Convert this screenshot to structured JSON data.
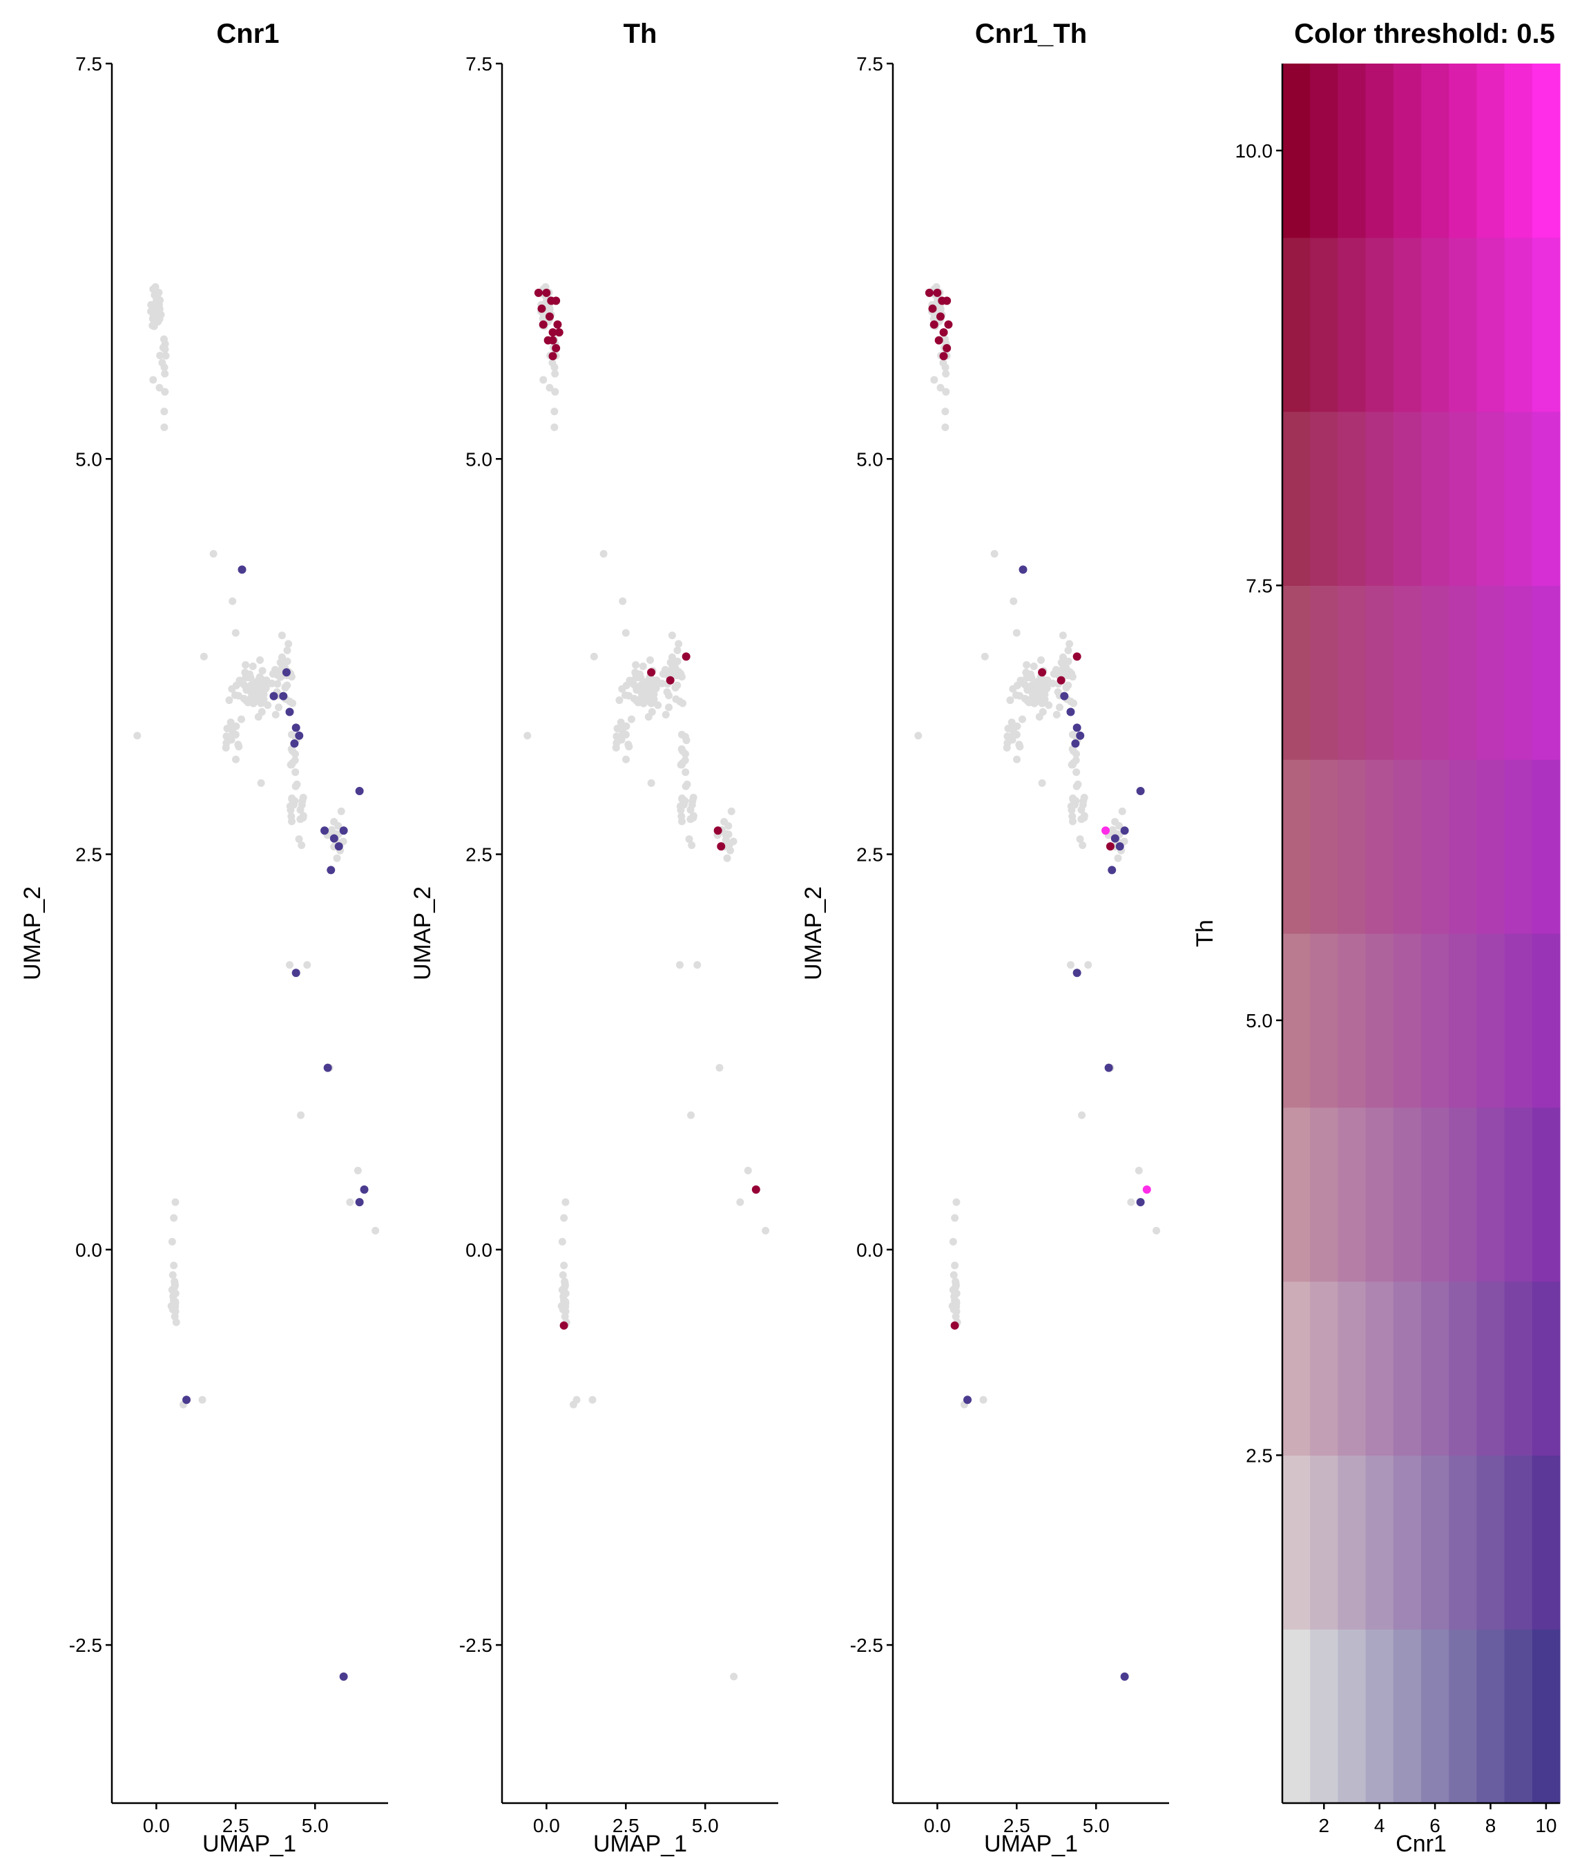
{
  "figure": {
    "background": "#ffffff",
    "point_colors": {
      "low": "#dddddd",
      "cnr1_high": "#4b3b8f",
      "th_high": "#960035",
      "both_high": "#ff2ce8"
    }
  },
  "chart_data": [
    {
      "type": "scatter",
      "title": "Cnr1",
      "xlabel": "UMAP_1",
      "ylabel": "UMAP_2",
      "xlim": [
        -1.4,
        7.3
      ],
      "ylim": [
        -3.5,
        7.5
      ],
      "x_ticks": [
        0.0,
        2.5,
        5.0
      ],
      "x_tick_labels": [
        "0.0",
        "2.5",
        "5.0"
      ],
      "y_ticks": [
        -2.5,
        0.0,
        2.5,
        5.0,
        7.5
      ],
      "y_tick_labels": [
        "-2.5",
        "0.0",
        "2.5",
        "5.0",
        "7.5"
      ],
      "grid": false,
      "legend": "none",
      "color_by": "Cnr1 expression (low = grey, high = purple)",
      "highlighted_points": [
        [
          2.7,
          4.3
        ],
        [
          3.7,
          3.5
        ],
        [
          4.0,
          3.5
        ],
        [
          4.1,
          3.65
        ],
        [
          4.2,
          3.4
        ],
        [
          4.4,
          3.3
        ],
        [
          4.5,
          3.25
        ],
        [
          4.35,
          3.2
        ],
        [
          5.3,
          2.65
        ],
        [
          5.6,
          2.6
        ],
        [
          5.75,
          2.55
        ],
        [
          5.9,
          2.65
        ],
        [
          6.4,
          2.9
        ],
        [
          5.5,
          2.4
        ],
        [
          4.4,
          1.75
        ],
        [
          5.4,
          1.15
        ],
        [
          6.4,
          0.3
        ],
        [
          6.55,
          0.38
        ],
        [
          0.95,
          -0.95
        ],
        [
          5.9,
          -2.7
        ]
      ]
    },
    {
      "type": "scatter",
      "title": "Th",
      "xlabel": "UMAP_1",
      "ylabel": "UMAP_2",
      "xlim": [
        -1.4,
        7.3
      ],
      "ylim": [
        -3.5,
        7.5
      ],
      "x_ticks": [
        0.0,
        2.5,
        5.0
      ],
      "x_tick_labels": [
        "0.0",
        "2.5",
        "5.0"
      ],
      "y_ticks": [
        -2.5,
        0.0,
        2.5,
        5.0,
        7.5
      ],
      "y_tick_labels": [
        "-2.5",
        "0.0",
        "2.5",
        "5.0",
        "7.5"
      ],
      "grid": false,
      "legend": "none",
      "color_by": "Th expression (low = grey, high = dark red)",
      "highlighted_points": [
        [
          -0.25,
          6.05
        ],
        [
          0.0,
          6.05
        ],
        [
          0.15,
          6.0
        ],
        [
          -0.15,
          5.95
        ],
        [
          0.3,
          6.0
        ],
        [
          -0.1,
          5.85
        ],
        [
          0.1,
          5.9
        ],
        [
          0.35,
          5.85
        ],
        [
          0.2,
          5.8
        ],
        [
          0.4,
          5.8
        ],
        [
          0.05,
          5.75
        ],
        [
          0.3,
          5.7
        ],
        [
          0.2,
          5.75
        ],
        [
          0.2,
          5.65
        ],
        [
          3.3,
          3.65
        ],
        [
          3.9,
          3.6
        ],
        [
          4.4,
          3.75
        ],
        [
          5.4,
          2.65
        ],
        [
          5.5,
          2.55
        ],
        [
          6.6,
          0.38
        ],
        [
          0.55,
          -0.48
        ]
      ]
    },
    {
      "type": "scatter",
      "title": "Cnr1_Th",
      "xlabel": "UMAP_1",
      "ylabel": "UMAP_2",
      "xlim": [
        -1.4,
        7.3
      ],
      "ylim": [
        -3.5,
        7.5
      ],
      "x_ticks": [
        0.0,
        2.5,
        5.0
      ],
      "x_tick_labels": [
        "0.0",
        "2.5",
        "5.0"
      ],
      "y_ticks": [
        -2.5,
        0.0,
        2.5,
        5.0,
        7.5
      ],
      "y_tick_labels": [
        "-2.5",
        "0.0",
        "2.5",
        "5.0",
        "7.5"
      ],
      "grid": false,
      "legend": "none",
      "color_by": "blended co-expression (Cnr1 = purple, Th = dark red, both = magenta)",
      "highlighted_points": [
        [
          -0.25,
          6.05
        ],
        [
          0.0,
          6.05
        ],
        [
          0.15,
          6.0
        ],
        [
          -0.15,
          5.95
        ],
        [
          0.3,
          6.0
        ],
        [
          -0.1,
          5.85
        ],
        [
          0.1,
          5.9
        ],
        [
          0.35,
          5.85
        ],
        [
          0.2,
          5.8
        ],
        [
          0.05,
          5.75
        ],
        [
          0.3,
          5.7
        ],
        [
          0.2,
          5.65
        ],
        [
          2.7,
          4.3
        ],
        [
          3.3,
          3.65
        ],
        [
          3.9,
          3.6
        ],
        [
          4.4,
          3.75
        ],
        [
          4.0,
          3.5
        ],
        [
          4.2,
          3.4
        ],
        [
          4.4,
          3.3
        ],
        [
          4.5,
          3.25
        ],
        [
          4.35,
          3.2
        ],
        [
          5.3,
          2.65
        ],
        [
          5.45,
          2.55
        ],
        [
          5.6,
          2.6
        ],
        [
          5.75,
          2.55
        ],
        [
          5.9,
          2.65
        ],
        [
          6.4,
          2.9
        ],
        [
          5.5,
          2.4
        ],
        [
          4.4,
          1.75
        ],
        [
          5.4,
          1.15
        ],
        [
          6.4,
          0.3
        ],
        [
          6.6,
          0.38
        ],
        [
          0.95,
          -0.95
        ],
        [
          5.9,
          -2.7
        ],
        [
          0.55,
          -0.48
        ]
      ]
    },
    {
      "type": "heatmap",
      "title": "Color threshold: 0.5",
      "xlabel": "Cnr1",
      "ylabel": "Th",
      "x_ticks": [
        2,
        4,
        6,
        8,
        10
      ],
      "x_tick_labels": [
        "2",
        "4",
        "6",
        "8",
        "10"
      ],
      "y_ticks": [
        2.5,
        5.0,
        7.5,
        10.0
      ],
      "y_tick_labels": [
        "2.5",
        "5.0",
        "7.5",
        "10.0"
      ],
      "xlim": [
        0.5,
        10.5
      ],
      "ylim": [
        0.5,
        10.5
      ],
      "grid_size": 10,
      "corner_colors": {
        "low_low": "#dddddd",
        "high_cnr1": "#483a8e",
        "high_th": "#8f0031",
        "high_both": "#ff2ce8"
      }
    }
  ]
}
